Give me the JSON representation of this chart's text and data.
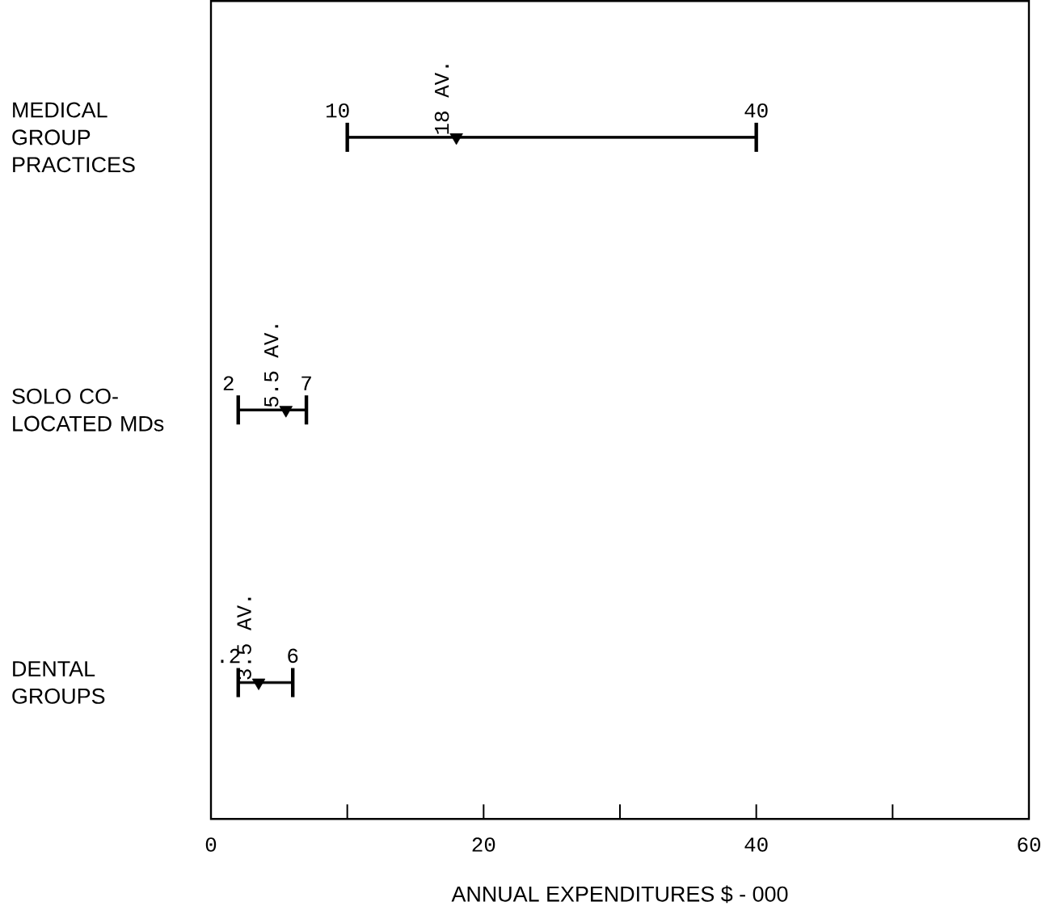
{
  "chart_data": {
    "type": "bar",
    "orientation": "horizontal",
    "categories": [
      "MEDICAL GROUP PRACTICES",
      "SOLO CO-LOCATED MDs",
      "DENTAL GROUPS"
    ],
    "series": [
      {
        "color": "#000000",
        "values": [
          30,
          5,
          4
        ],
        "base": [
          10,
          2,
          2
        ]
      },
      {
        "type": "scatter",
        "color": "#000000",
        "marker": "triangle",
        "x": [
          "MEDICAL GROUP PRACTICES",
          "SOLO CO-LOCATED MDs",
          "DENTAL GROUPS"
        ],
        "values": [
          18,
          5.5,
          3.5
        ],
        "value_labels": [
          "18 AV.",
          "5.5 AV.",
          "3.5 AV."
        ]
      }
    ],
    "xlabel": "ANNUAL EXPENDITURES $ - 000",
    "xlim": [
      0,
      60
    ],
    "xticks": [
      0,
      20,
      40,
      60
    ],
    "annotations": [
      {
        "text": "10",
        "x": 10,
        "y": "MEDICAL GROUP PRACTICES"
      },
      {
        "text": "40",
        "x": 40,
        "y": "MEDICAL GROUP PRACTICES"
      },
      {
        "text": "2",
        "x": 2,
        "y": "SOLO CO-LOCATED MDs"
      },
      {
        "text": "7",
        "x": 7,
        "y": "SOLO CO-LOCATED MDs"
      },
      {
        "text": ".2",
        "x": 2,
        "y": "DENTAL GROUPS"
      },
      {
        "text": "6",
        "x": 6,
        "y": "DENTAL GROUPS"
      }
    ]
  }
}
